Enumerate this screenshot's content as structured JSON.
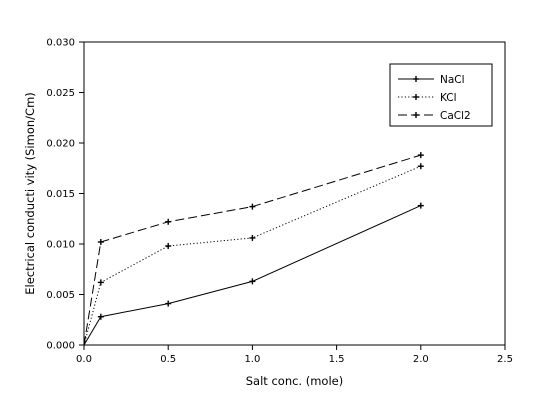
{
  "chart_data": {
    "type": "line",
    "xlabel": "Salt conc. (mole)",
    "ylabel": "Electrical conducti  vity (Simon/Cm)",
    "xlim": [
      0,
      2.5
    ],
    "ylim": [
      0,
      0.03
    ],
    "x_ticks": [
      0,
      0.5,
      1,
      1.5,
      2,
      2.5
    ],
    "x_tick_labels": [
      "0.0",
      "0.5",
      "1.0",
      "1.5",
      "2.0",
      "2.5"
    ],
    "y_ticks": [
      0,
      0.005,
      0.01,
      0.015,
      0.02,
      0.025,
      0.03
    ],
    "y_tick_labels": [
      "0.000",
      "0.005",
      "0.010",
      "0.015",
      "0.020",
      "0.025",
      "0.030"
    ],
    "grid": false,
    "legend_position": "top-right",
    "series": [
      {
        "name": "NaCl",
        "line_style": "solid",
        "marker": "plus",
        "x": [
          0,
          0.1,
          0.5,
          1.0,
          2.0
        ],
        "y": [
          0,
          0.0028,
          0.0041,
          0.0063,
          0.0138
        ]
      },
      {
        "name": "KCl",
        "line_style": "dotted",
        "marker": "plus",
        "x": [
          0,
          0.1,
          0.5,
          1.0,
          2.0
        ],
        "y": [
          0,
          0.0062,
          0.0098,
          0.0106,
          0.0177
        ]
      },
      {
        "name": "CaCl2",
        "line_style": "dashed",
        "marker": "plus",
        "x": [
          0,
          0.1,
          0.5,
          1.0,
          2.0
        ],
        "y": [
          0,
          0.0102,
          0.0122,
          0.0137,
          0.0188
        ]
      }
    ]
  }
}
